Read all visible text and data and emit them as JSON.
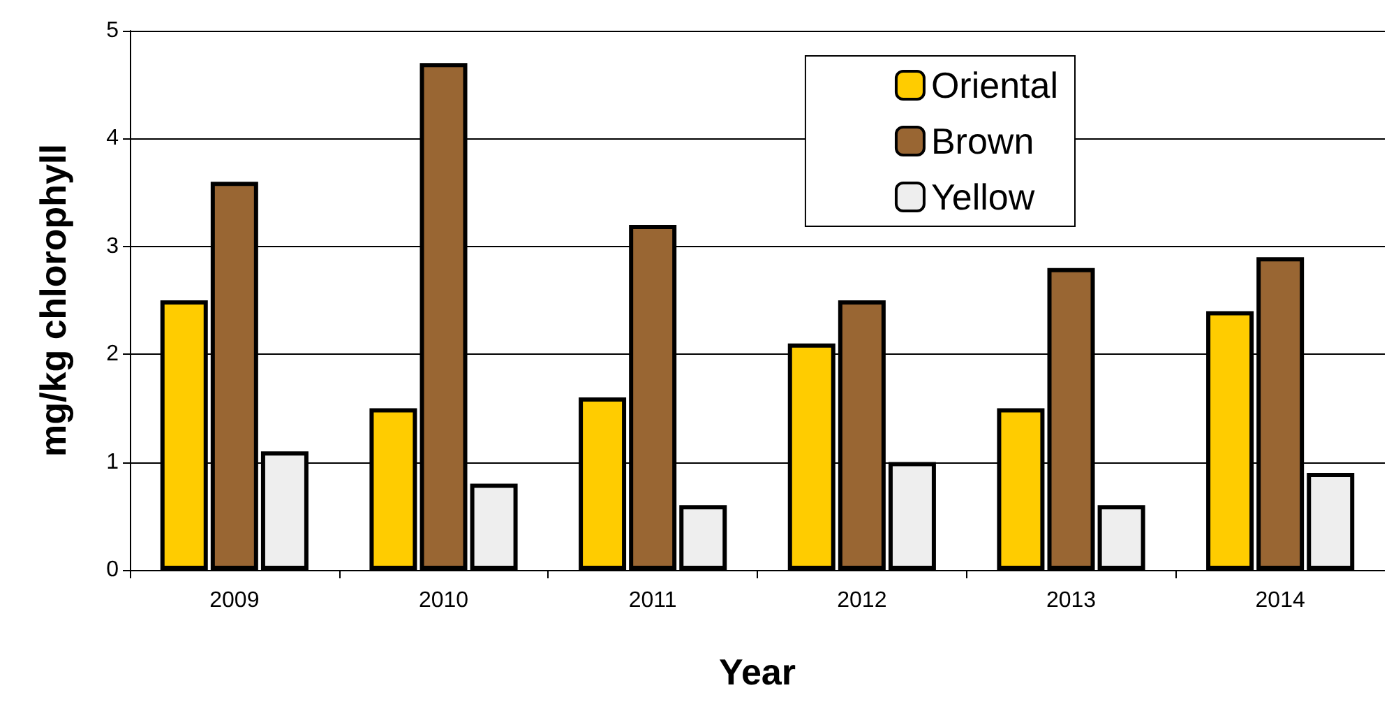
{
  "chart_data": {
    "type": "bar",
    "xlabel": "Year",
    "ylabel": "mg/kg chlorophyll",
    "categories": [
      "2009",
      "2010",
      "2011",
      "2012",
      "2013",
      "2014"
    ],
    "series": [
      {
        "name": "Oriental",
        "color": "#ffcc00",
        "values": [
          2.5,
          1.5,
          1.6,
          2.1,
          1.5,
          2.4
        ]
      },
      {
        "name": "Brown",
        "color": "#996633",
        "values": [
          3.6,
          4.7,
          3.2,
          2.5,
          2.8,
          2.9
        ]
      },
      {
        "name": "Yellow",
        "color": "#eeeeee",
        "values": [
          1.1,
          0.8,
          0.6,
          1.0,
          0.6,
          0.9
        ]
      }
    ],
    "ylim": [
      0,
      5
    ],
    "yticks": [
      0,
      1,
      2,
      3,
      4,
      5
    ],
    "grid": "y",
    "legend": "top right"
  }
}
